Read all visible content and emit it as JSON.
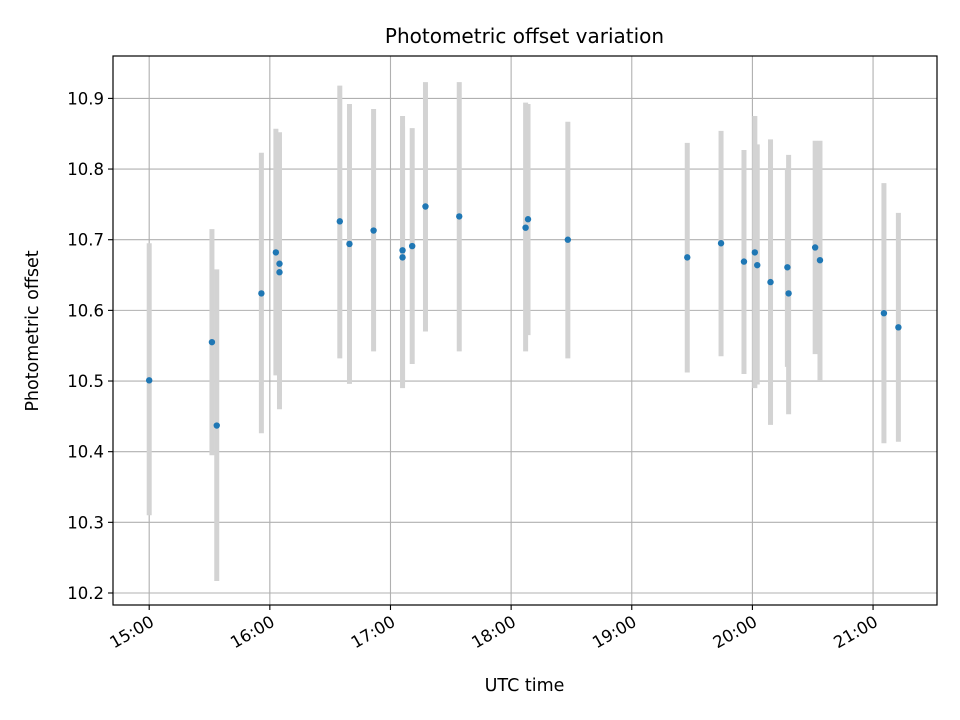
{
  "chart_data": {
    "type": "scatter",
    "title": "Photometric offset variation",
    "xlabel": "UTC time",
    "ylabel": "Photometric offset",
    "grid": true,
    "xlim": [
      14.7,
      21.53
    ],
    "ylim": [
      10.183,
      10.96
    ],
    "x_ticks": [
      {
        "value": 15,
        "label": "15:00"
      },
      {
        "value": 16,
        "label": "16:00"
      },
      {
        "value": 17,
        "label": "17:00"
      },
      {
        "value": 18,
        "label": "18:00"
      },
      {
        "value": 19,
        "label": "19:00"
      },
      {
        "value": 20,
        "label": "20:00"
      },
      {
        "value": 21,
        "label": "21:00"
      }
    ],
    "y_ticks": [
      {
        "value": 10.2,
        "label": "10.2"
      },
      {
        "value": 10.3,
        "label": "10.3"
      },
      {
        "value": 10.4,
        "label": "10.4"
      },
      {
        "value": 10.5,
        "label": "10.5"
      },
      {
        "value": 10.6,
        "label": "10.6"
      },
      {
        "value": 10.7,
        "label": "10.7"
      },
      {
        "value": 10.8,
        "label": "10.8"
      },
      {
        "value": 10.9,
        "label": "10.9"
      }
    ],
    "colors": {
      "point": "#1f77b4",
      "errorbar": "#d3d3d3",
      "grid": "#b0b0b0",
      "axes": "#000000"
    },
    "series": [
      {
        "name": "offset",
        "x_unit": "hours UTC",
        "points": [
          {
            "x": 15.0,
            "y": 10.501,
            "err_low": 10.31,
            "err_high": 10.695
          },
          {
            "x": 15.52,
            "y": 10.555,
            "err_low": 10.395,
            "err_high": 10.715
          },
          {
            "x": 15.56,
            "y": 10.437,
            "err_low": 10.217,
            "err_high": 10.658
          },
          {
            "x": 15.93,
            "y": 10.624,
            "err_low": 10.426,
            "err_high": 10.823
          },
          {
            "x": 16.05,
            "y": 10.682,
            "err_low": 10.508,
            "err_high": 10.857
          },
          {
            "x": 16.08,
            "y": 10.666,
            "err_low": 10.46,
            "err_high": 10.852
          },
          {
            "x": 16.08,
            "y": 10.654,
            "err_low": 10.48,
            "err_high": 10.83
          },
          {
            "x": 16.58,
            "y": 10.726,
            "err_low": 10.532,
            "err_high": 10.918
          },
          {
            "x": 16.66,
            "y": 10.694,
            "err_low": 10.496,
            "err_high": 10.892
          },
          {
            "x": 16.86,
            "y": 10.713,
            "err_low": 10.542,
            "err_high": 10.885
          },
          {
            "x": 17.1,
            "y": 10.685,
            "err_low": 10.495,
            "err_high": 10.875
          },
          {
            "x": 17.1,
            "y": 10.675,
            "err_low": 10.49,
            "err_high": 10.86
          },
          {
            "x": 17.18,
            "y": 10.691,
            "err_low": 10.524,
            "err_high": 10.858
          },
          {
            "x": 17.29,
            "y": 10.747,
            "err_low": 10.57,
            "err_high": 10.923
          },
          {
            "x": 17.57,
            "y": 10.733,
            "err_low": 10.542,
            "err_high": 10.923
          },
          {
            "x": 18.12,
            "y": 10.717,
            "err_low": 10.542,
            "err_high": 10.894
          },
          {
            "x": 18.14,
            "y": 10.729,
            "err_low": 10.565,
            "err_high": 10.892
          },
          {
            "x": 18.47,
            "y": 10.7,
            "err_low": 10.532,
            "err_high": 10.867
          },
          {
            "x": 19.46,
            "y": 10.675,
            "err_low": 10.512,
            "err_high": 10.837
          },
          {
            "x": 19.74,
            "y": 10.695,
            "err_low": 10.535,
            "err_high": 10.854
          },
          {
            "x": 19.93,
            "y": 10.669,
            "err_low": 10.51,
            "err_high": 10.827
          },
          {
            "x": 20.02,
            "y": 10.682,
            "err_low": 10.49,
            "err_high": 10.875
          },
          {
            "x": 20.04,
            "y": 10.664,
            "err_low": 10.495,
            "err_high": 10.835
          },
          {
            "x": 20.15,
            "y": 10.64,
            "err_low": 10.438,
            "err_high": 10.842
          },
          {
            "x": 20.29,
            "y": 10.661,
            "err_low": 10.52,
            "err_high": 10.8
          },
          {
            "x": 20.3,
            "y": 10.624,
            "err_low": 10.453,
            "err_high": 10.82
          },
          {
            "x": 20.52,
            "y": 10.689,
            "err_low": 10.538,
            "err_high": 10.84
          },
          {
            "x": 20.56,
            "y": 10.671,
            "err_low": 10.5,
            "err_high": 10.84
          },
          {
            "x": 21.09,
            "y": 10.596,
            "err_low": 10.412,
            "err_high": 10.78
          },
          {
            "x": 21.21,
            "y": 10.576,
            "err_low": 10.414,
            "err_high": 10.738
          }
        ]
      }
    ]
  }
}
